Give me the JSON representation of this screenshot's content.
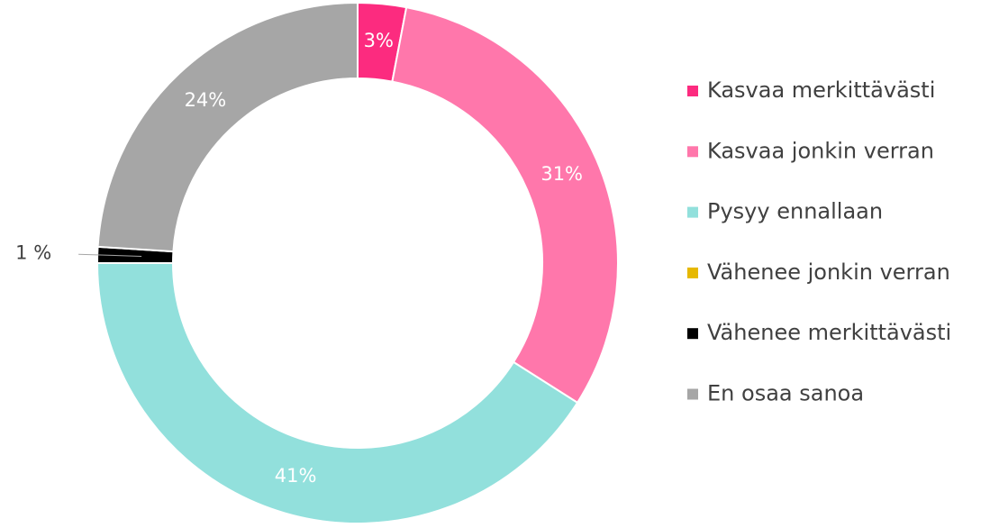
{
  "chart_data": {
    "type": "donut",
    "categories": [
      "Kasvaa merkittävästi",
      "Kasvaa jonkin verran",
      "Pysyy ennallaan",
      "Vähenee jonkin verran",
      "Vähenee merkittävästi",
      "En osaa sanoa"
    ],
    "values": [
      3,
      31,
      41,
      0,
      1,
      24
    ],
    "value_labels": [
      "3%",
      "31%",
      "41%",
      null,
      "1 %",
      "24%"
    ],
    "colors": [
      "#fc2b7f",
      "#ff77ab",
      "#92e0dc",
      "#e6b800",
      "#000000",
      "#a6a6a6"
    ],
    "legend": "right"
  }
}
